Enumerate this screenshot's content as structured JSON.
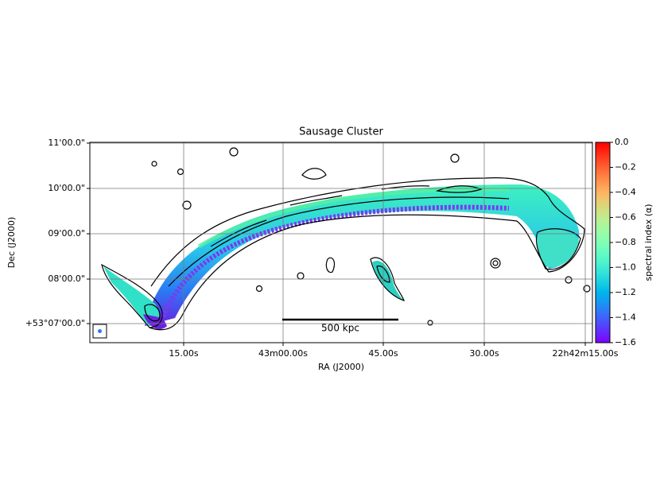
{
  "chart_data": {
    "type": "image",
    "title": "Sausage Cluster",
    "xlabel": "RA (J2000)",
    "ylabel": "Dec (J2000)",
    "x_tick_labels": [
      "15.00s",
      "43m00.00s",
      "45.00s",
      "30.00s",
      "22h42m15.00s"
    ],
    "y_tick_labels": [
      "11'00.0\"",
      "10'00.0\"",
      "09'00.0\"",
      "08'00.0\"",
      "+53°07'00.0\""
    ],
    "grid": true,
    "scale_bar_label": "500 kpc",
    "colorbar": {
      "label": "spectral index (α)",
      "colormap": "rainbow",
      "lim": [
        -1.6,
        0
      ],
      "ticks": [
        {
          "value": 0,
          "label": "0.0"
        },
        {
          "value": -0.2,
          "label": "−0.2"
        },
        {
          "value": -0.4,
          "label": "−0.4"
        },
        {
          "value": -0.6,
          "label": "−0.6"
        },
        {
          "value": -0.8,
          "label": "−0.8"
        },
        {
          "value": -1.0,
          "label": "−1.0"
        },
        {
          "value": -1.2,
          "label": "−1.2"
        },
        {
          "value": -1.4,
          "label": "−1.4"
        },
        {
          "value": -1.6,
          "label": "−1.6"
        }
      ]
    }
  }
}
